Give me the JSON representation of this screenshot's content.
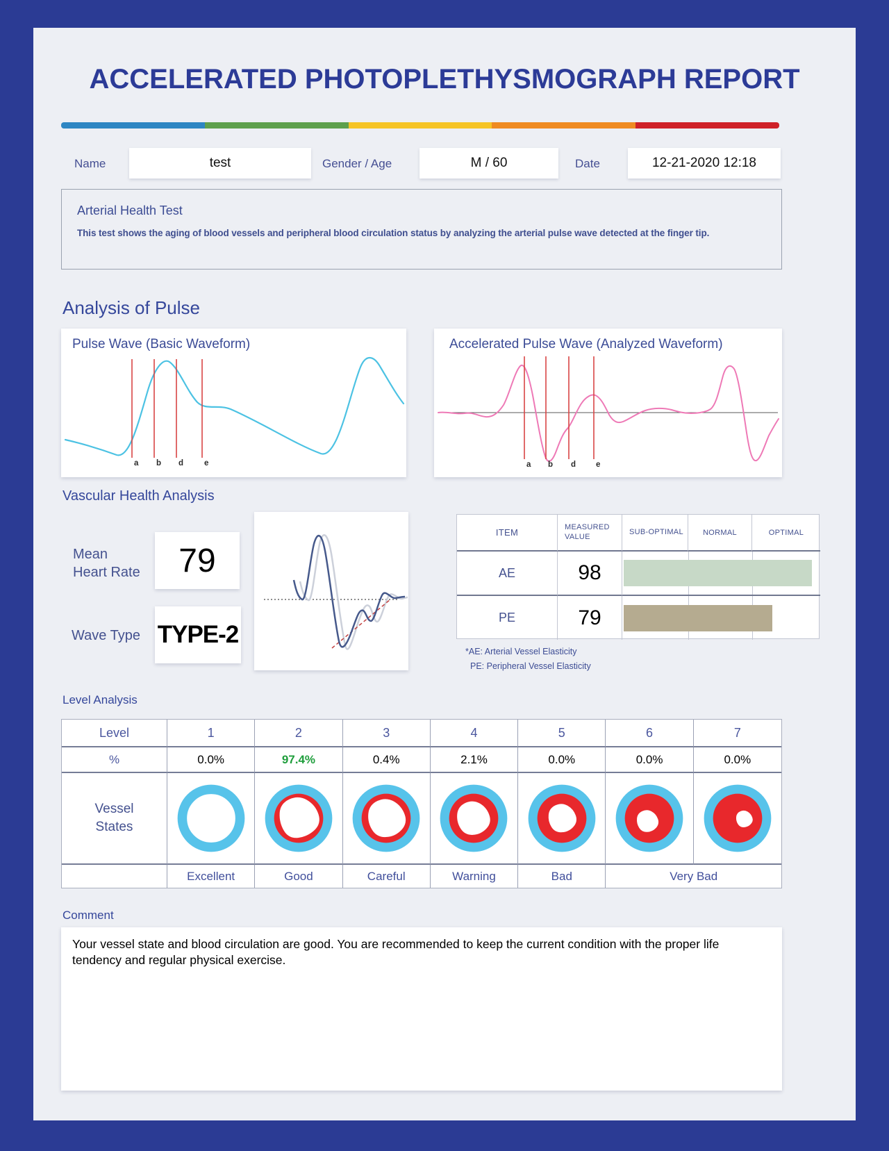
{
  "theme": {
    "frame_color": "#2b3b94",
    "page_bg": "#edeff4",
    "title_color": "#2c3b97",
    "rainbow": [
      "#2e86c3",
      "#5ea04d",
      "#f6c426",
      "#ef8b22",
      "#cf2128"
    ],
    "basic_wave_color": "#4cc2e3",
    "accelerated_wave_color": "#ee79b6",
    "marker_line_color": "#d94545",
    "analyzed_wave_color": "#46598b",
    "highlight_green": "#1f9e3c",
    "vessel_ring_color": "#57c3ea",
    "vessel_plaque_color": "#e8282c",
    "ae_bar_color": "#c7d9c7",
    "pe_bar_color": "#b5ab90"
  },
  "report": {
    "title": "ACCELERATED PHOTOPLETHYSMOGRAPH REPORT",
    "fields": {
      "name_label": "Name",
      "name_value": "test",
      "gender_age_label": "Gender / Age",
      "gender_age_value": "M / 60",
      "date_label": "Date",
      "date_value": "12-21-2020 12:18"
    },
    "intro": {
      "title": "Arterial Health Test",
      "description": "This test shows the aging of blood vessels and peripheral blood circulation status by analyzing the arterial pulse wave detected at the finger tip."
    }
  },
  "analysis_of_pulse": {
    "heading": "Analysis of Pulse",
    "basic_wave_title": "Pulse Wave (Basic Waveform)",
    "accelerated_wave_title": "Accelerated Pulse Wave (Analyzed Waveform)",
    "markers": [
      "a",
      "b",
      "d",
      "e"
    ]
  },
  "vascular_health": {
    "heading": "Vascular Health Analysis",
    "mean_heart_rate_label": "Mean\nHeart Rate",
    "mean_heart_rate_value": "79",
    "wave_type_label": "Wave Type",
    "wave_type_value": "TYPE-2",
    "table": {
      "headers": {
        "item": "ITEM",
        "measured_value": "MEASURED VALUE",
        "sub_optimal": "SUB-OPTIMAL",
        "normal": "NORMAL",
        "optimal": "OPTIMAL"
      },
      "rows": [
        {
          "item": "AE",
          "value": "98",
          "bar_width_pct": 95,
          "bar_color": "#c7d9c7"
        },
        {
          "item": "PE",
          "value": "79",
          "bar_width_pct": 75,
          "bar_color": "#b5ab90"
        }
      ]
    },
    "footnotes": [
      "*AE: Arterial Vessel Elasticity",
      "PE: Peripheral Vessel Elasticity"
    ]
  },
  "level_analysis": {
    "heading": "Level Analysis",
    "level_label": "Level",
    "percent_label": "%",
    "vessel_states_label": "Vessel\nStates",
    "levels": [
      "1",
      "2",
      "3",
      "4",
      "5",
      "6",
      "7"
    ],
    "percentages": [
      "0.0%",
      "97.4%",
      "0.4%",
      "2.1%",
      "0.0%",
      "0.0%",
      "0.0%"
    ],
    "highlight_index": 1,
    "highlight_color": "#1f9e3c",
    "state_labels": [
      "Excellent",
      "Good",
      "Careful",
      "Warning",
      "Bad",
      "Very Bad"
    ]
  },
  "comment": {
    "heading": "Comment",
    "text": "Your vessel state and blood circulation are good. You are recommended to keep the current condition with the proper life tendency and regular physical exercise."
  },
  "chart_data": [
    {
      "type": "line",
      "title": "Pulse Wave (Basic Waveform)",
      "annotations": [
        "a",
        "b",
        "d",
        "e"
      ],
      "description": "Fingertip photoplethysmogram pulse wave, two pulse cycles; red cursors a, b, d, e mark analysis points on the first cycle."
    },
    {
      "type": "line",
      "title": "Accelerated Pulse Wave (Analyzed Waveform)",
      "annotations": [
        "a",
        "b",
        "d",
        "e"
      ],
      "description": "Second-derivative accelerated plethysmogram around a zero baseline, two pulse cycles; red cursors a, b, d, e mark wave components."
    },
    {
      "type": "bar",
      "categories": [
        "AE",
        "PE"
      ],
      "values": [
        98,
        79
      ],
      "title": "Vessel elasticity vs Sub-Optimal / Normal / Optimal ranges",
      "xlabel": "",
      "ylabel": "",
      "legend": [
        "AE: Arterial Vessel Elasticity",
        "PE: Peripheral Vessel Elasticity"
      ]
    },
    {
      "type": "bar",
      "categories": [
        "1",
        "2",
        "3",
        "4",
        "5",
        "6",
        "7"
      ],
      "values": [
        0.0,
        97.4,
        0.4,
        2.1,
        0.0,
        0.0,
        0.0
      ],
      "title": "Vessel state level distribution (%)"
    }
  ]
}
